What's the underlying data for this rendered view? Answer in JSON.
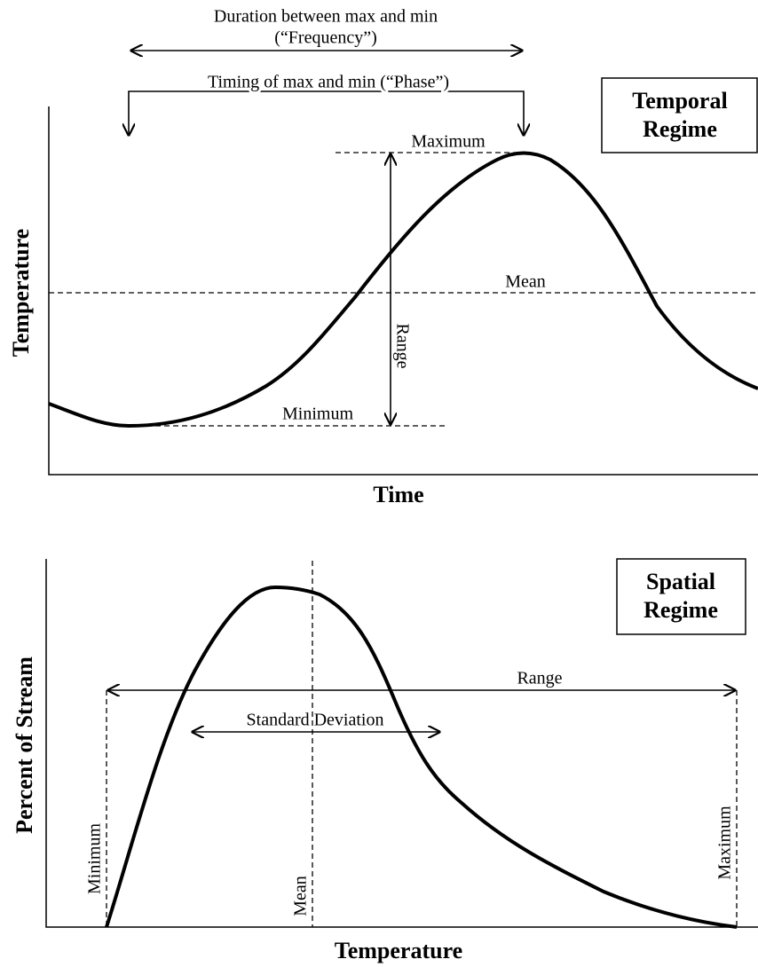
{
  "temporal": {
    "title_line1": "Temporal",
    "title_line2": "Regime",
    "y_label": "Temperature",
    "x_label": "Time",
    "frequency_line1": "Duration between max and min",
    "frequency_line2": "(“Frequency”)",
    "phase": "Timing of max and min (“Phase”)",
    "maximum": "Maximum",
    "mean": "Mean",
    "minimum": "Minimum",
    "range": "Range"
  },
  "spatial": {
    "title_line1": "Spatial",
    "title_line2": "Regime",
    "y_label": "Percent of Stream",
    "x_label": "Temperature",
    "range": "Range",
    "std_dev": "Standard Deviation",
    "minimum": "Minimum",
    "mean": "Mean",
    "maximum": "Maximum"
  }
}
